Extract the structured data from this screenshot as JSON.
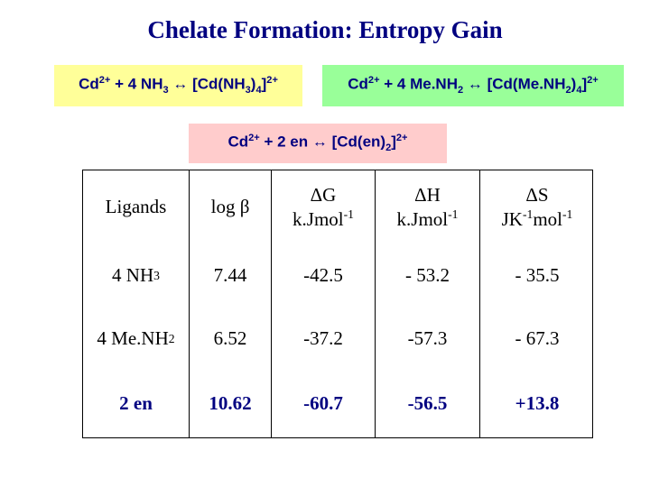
{
  "title": "Chelate Formation: Entropy Gain",
  "equations": {
    "eq1": {
      "a": "Cd",
      "a_sup": "2+",
      "b": " + 4 NH",
      "b_sub": "3",
      "arrow": " ↔ ",
      "c": "[Cd(NH",
      "c_sub": "3",
      "d": ")",
      "d_sub": "4",
      "e": "]",
      "e_sup": "2+"
    },
    "eq2": {
      "a": "Cd",
      "a_sup": "2+",
      "b": " + 4 Me.NH",
      "b_sub": "2",
      "arrow": " ↔ ",
      "c": "[Cd(Me.NH",
      "c_sub": "2",
      "d": ")",
      "d_sub": "4",
      "e": "]",
      "e_sup": "2+"
    },
    "eq3": {
      "a": "Cd",
      "a_sup": "2+",
      "b": " + 2 en",
      "arrow": " ↔ ",
      "c": "[Cd(en)",
      "c_sub": "2",
      "e": "]",
      "e_sup": "2+"
    }
  },
  "table": {
    "headers": {
      "ligands": "Ligands",
      "logb": "log β",
      "dg": "ΔG",
      "dg_unit": "k.Jmol",
      "dg_unit_sup": "-1",
      "dh": "ΔH",
      "dh_unit": "k.Jmol",
      "dh_unit_sup": "-1",
      "ds": "ΔS",
      "ds_unit_a": "JK",
      "ds_unit_a_sup": "-1",
      "ds_unit_b": "mol",
      "ds_unit_b_sup": "-1"
    },
    "rows": [
      {
        "ligand": "4 NH",
        "ligand_sub": "3",
        "logb": "7.44",
        "dg": "-42.5",
        "dh": "- 53.2",
        "ds": "- 35.5"
      },
      {
        "ligand": "4 Me.NH",
        "ligand_sub": "2",
        "logb": "6.52",
        "dg": "-37.2",
        "dh": "-57.3",
        "ds": "- 67.3"
      },
      {
        "ligand": "2 en",
        "logb": "10.62",
        "dg": "-60.7",
        "dh": "-56.5",
        "ds": "+13.8"
      }
    ]
  }
}
